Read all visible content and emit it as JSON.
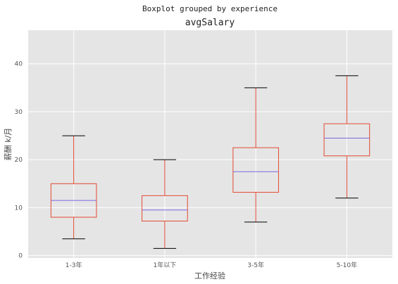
{
  "chart_data": {
    "type": "boxplot",
    "title": "Boxplot grouped by experience",
    "subtitle": "avgSalary",
    "xlabel": "工作经验",
    "ylabel": "薪酬 k/月",
    "ylim": [
      -0.5,
      47
    ],
    "yticks": [
      0,
      10,
      20,
      30,
      40
    ],
    "grid": true,
    "categories": [
      "1-3年",
      "1年以下",
      "3-5年",
      "5-10年"
    ],
    "boxes": [
      {
        "whisker_low": 3.5,
        "q1": 8.0,
        "median": 11.5,
        "q3": 15.0,
        "whisker_high": 25.0
      },
      {
        "whisker_low": 1.5,
        "q1": 7.2,
        "median": 9.5,
        "q3": 12.5,
        "whisker_high": 20.0
      },
      {
        "whisker_low": 7.0,
        "q1": 13.2,
        "median": 17.5,
        "q3": 22.5,
        "whisker_high": 35.0
      },
      {
        "whisker_low": 12.0,
        "q1": 20.8,
        "median": 24.5,
        "q3": 27.5,
        "whisker_high": 37.5
      }
    ],
    "colors": {
      "background": "#e5e5e5",
      "grid": "#ffffff",
      "box": "#e24a33",
      "median": "#7a68e0",
      "cap": "#000000"
    }
  }
}
